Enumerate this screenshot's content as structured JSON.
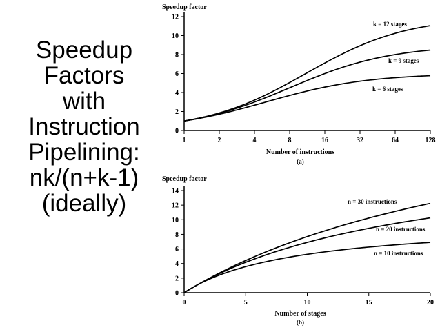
{
  "slide": {
    "title_lines": [
      "Speedup",
      "Factors",
      "with",
      "Instruction",
      "Pipelining:",
      "nk/(n+k-1)",
      "(ideally)"
    ]
  },
  "chart_data": [
    {
      "type": "line",
      "title": "",
      "ylabel": "Speedup factor",
      "xlabel": "Number of instructions",
      "sublabel": "(a)",
      "xscale": "log2",
      "x_ticks": [
        1,
        2,
        4,
        8,
        16,
        32,
        64,
        128
      ],
      "y_ticks": [
        0,
        2,
        4,
        6,
        8,
        10,
        12
      ],
      "ylim": [
        0,
        12
      ],
      "series": [
        {
          "name": "k = 12 stages",
          "stages": 12,
          "x": [
            1,
            2,
            4,
            8,
            16,
            32,
            64,
            128
          ],
          "values": [
            1,
            1.85,
            3.2,
            5.05,
            7.01,
            8.73,
            9.94,
            10.98
          ]
        },
        {
          "name": "k = 9 stages",
          "stages": 9,
          "x": [
            1,
            2,
            4,
            8,
            16,
            32,
            64,
            128
          ],
          "values": [
            1,
            1.8,
            3.0,
            4.5,
            6.0,
            7.2,
            7.92,
            8.4
          ]
        },
        {
          "name": "k = 6 stages",
          "stages": 6,
          "x": [
            1,
            2,
            4,
            8,
            16,
            32,
            64,
            128
          ],
          "values": [
            1,
            1.71,
            2.67,
            3.69,
            4.57,
            5.19,
            5.56,
            5.77
          ]
        }
      ]
    },
    {
      "type": "line",
      "title": "",
      "ylabel": "Speedup factor",
      "xlabel": "Number of stages",
      "sublabel": "(b)",
      "xscale": "linear",
      "x_ticks": [
        0,
        5,
        10,
        15,
        20
      ],
      "y_ticks": [
        0,
        2,
        4,
        6,
        8,
        10,
        12,
        14
      ],
      "xlim": [
        0,
        20
      ],
      "ylim": [
        0,
        14
      ],
      "series": [
        {
          "name": "n = 30 instructions",
          "instructions": 30,
          "x": [
            0,
            2,
            4,
            6,
            8,
            10,
            12,
            14,
            16,
            18,
            20
          ],
          "values": [
            0,
            1.94,
            3.64,
            5.14,
            6.49,
            7.69,
            8.78,
            9.77,
            10.67,
            11.49,
            12.24
          ]
        },
        {
          "name": "n = 20 instructions",
          "instructions": 20,
          "x": [
            0,
            2,
            4,
            6,
            8,
            10,
            12,
            14,
            16,
            18,
            20
          ],
          "values": [
            0,
            1.9,
            3.48,
            4.8,
            5.93,
            6.9,
            7.74,
            8.48,
            9.14,
            9.73,
            10.26
          ]
        },
        {
          "name": "n = 10 instructions",
          "instructions": 10,
          "x": [
            0,
            2,
            4,
            6,
            8,
            10,
            12,
            14,
            16,
            18,
            20
          ],
          "values": [
            0,
            1.82,
            3.08,
            4.0,
            4.71,
            5.26,
            5.71,
            6.09,
            6.4,
            6.67,
            6.9
          ]
        }
      ]
    }
  ]
}
